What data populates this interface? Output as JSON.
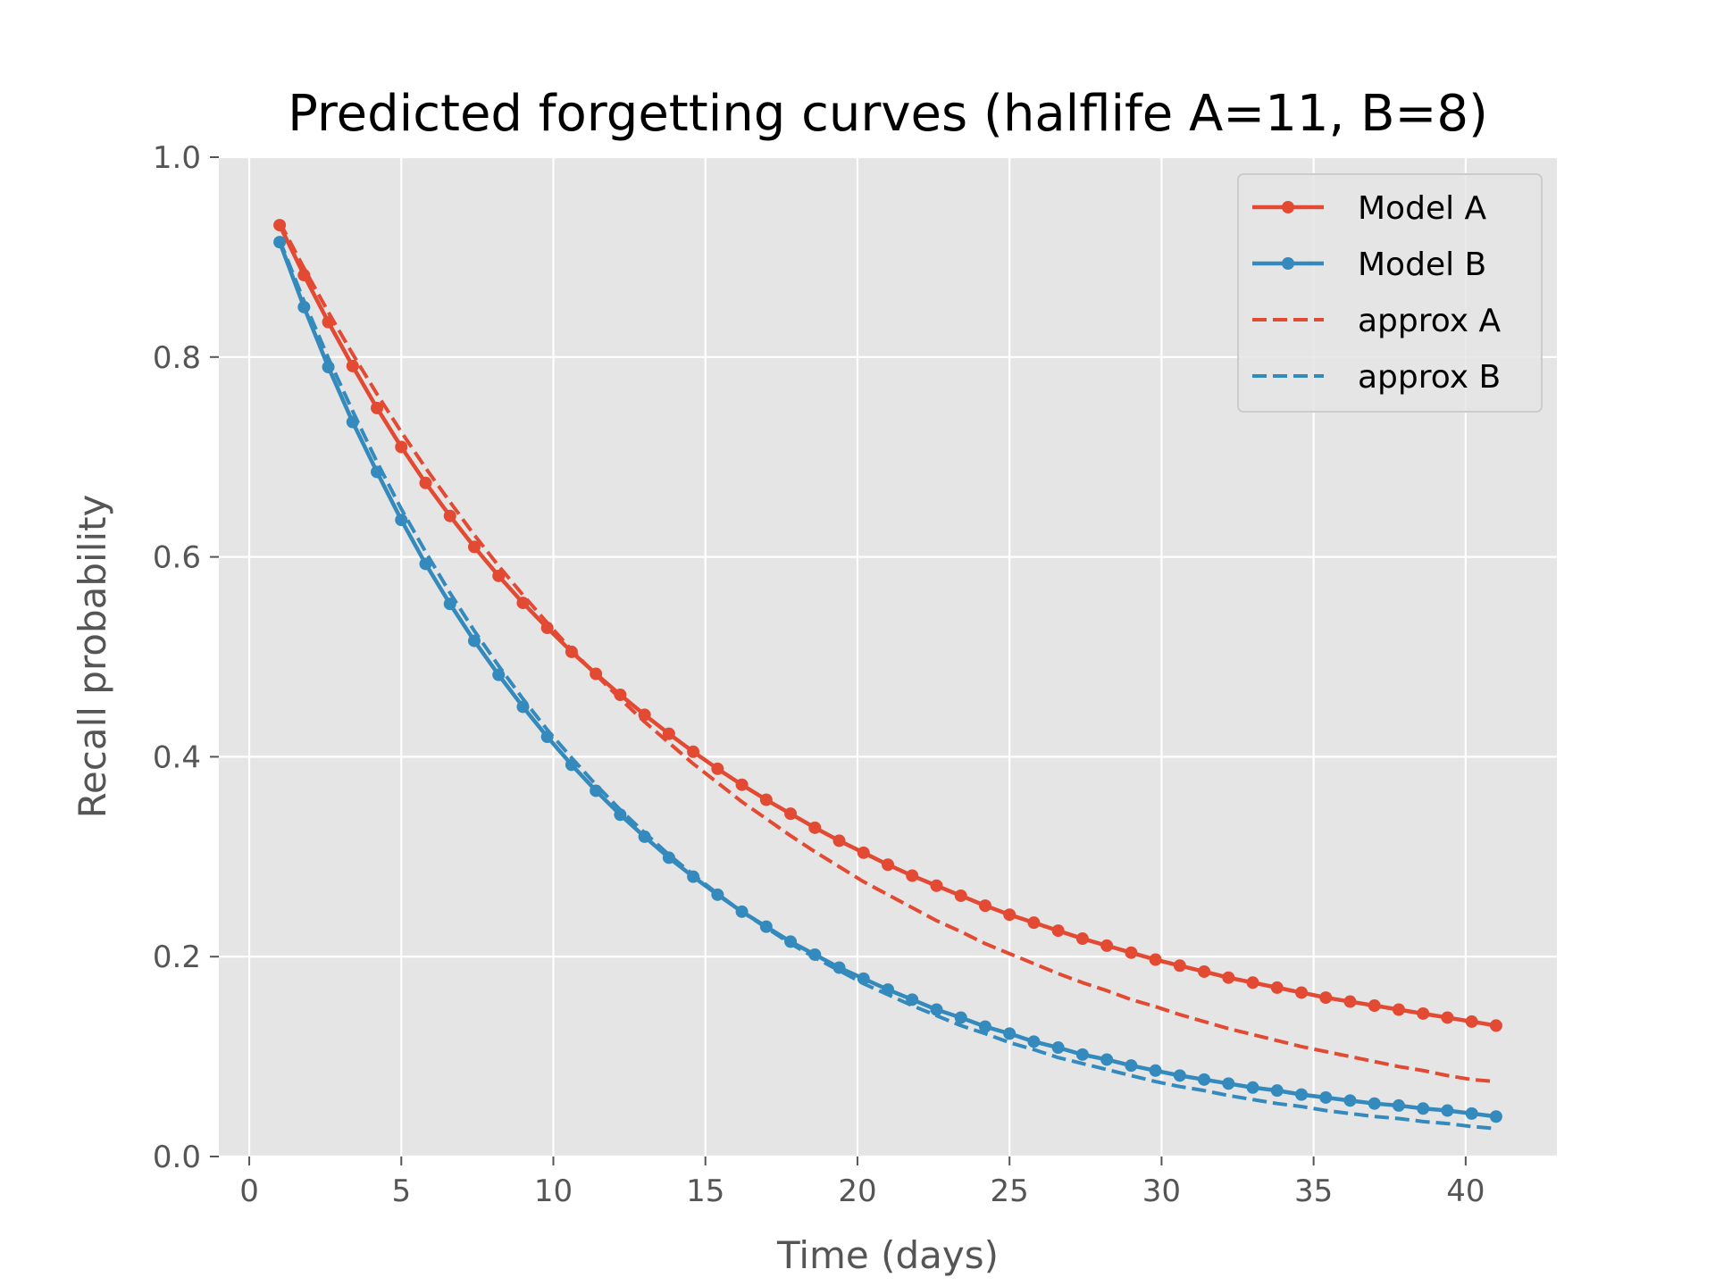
{
  "chart_data": {
    "type": "line",
    "title": "Predicted forgetting curves (halflife A=11, B=8)",
    "xlabel": "Time (days)",
    "ylabel": "Recall probability",
    "xlim": [
      -1.0,
      43.0
    ],
    "ylim": [
      0.0,
      1.0
    ],
    "xticks": [
      0,
      5,
      10,
      15,
      20,
      25,
      30,
      35,
      40
    ],
    "xtick_labels": [
      "0",
      "5",
      "10",
      "15",
      "20",
      "25",
      "30",
      "35",
      "40"
    ],
    "yticks": [
      0.0,
      0.2,
      0.4,
      0.6,
      0.8,
      1.0
    ],
    "ytick_labels": [
      "0.0",
      "0.2",
      "0.4",
      "0.6",
      "0.8",
      "1.0"
    ],
    "grid": true,
    "legend_position": "top-right",
    "x": [
      1.0,
      1.8,
      2.6,
      3.4,
      4.2,
      5.0,
      5.8,
      6.6,
      7.4,
      8.2,
      9.0,
      9.8,
      10.6,
      11.4,
      12.2,
      13.0,
      13.8,
      14.6,
      15.4,
      16.2,
      17.0,
      17.8,
      18.6,
      19.4,
      20.2,
      21.0,
      21.8,
      22.6,
      23.4,
      24.2,
      25.0,
      25.8,
      26.6,
      27.4,
      28.2,
      29.0,
      29.8,
      30.6,
      31.4,
      32.2,
      33.0,
      33.8,
      34.6,
      35.4,
      36.2,
      37.0,
      37.8,
      38.6,
      39.4,
      40.2,
      41.0
    ],
    "series": [
      {
        "name": "Model A",
        "style": "solid-marker",
        "color": "#E24A33",
        "values": [
          0.932,
          0.882,
          0.835,
          0.791,
          0.749,
          0.71,
          0.674,
          0.641,
          0.61,
          0.581,
          0.554,
          0.529,
          0.505,
          0.483,
          0.462,
          0.442,
          0.423,
          0.405,
          0.388,
          0.372,
          0.357,
          0.343,
          0.329,
          0.316,
          0.304,
          0.292,
          0.281,
          0.271,
          0.261,
          0.251,
          0.242,
          0.234,
          0.226,
          0.218,
          0.211,
          0.204,
          0.197,
          0.191,
          0.185,
          0.179,
          0.174,
          0.169,
          0.164,
          0.159,
          0.155,
          0.151,
          0.147,
          0.143,
          0.139,
          0.135,
          0.131
        ]
      },
      {
        "name": "Model B",
        "style": "solid-marker",
        "color": "#348ABD",
        "values": [
          0.915,
          0.85,
          0.79,
          0.735,
          0.685,
          0.637,
          0.593,
          0.553,
          0.516,
          0.482,
          0.45,
          0.42,
          0.392,
          0.366,
          0.342,
          0.32,
          0.299,
          0.28,
          0.262,
          0.245,
          0.23,
          0.215,
          0.202,
          0.189,
          0.178,
          0.167,
          0.157,
          0.147,
          0.139,
          0.13,
          0.123,
          0.115,
          0.109,
          0.102,
          0.097,
          0.091,
          0.086,
          0.081,
          0.077,
          0.073,
          0.069,
          0.066,
          0.062,
          0.059,
          0.056,
          0.053,
          0.051,
          0.048,
          0.046,
          0.043,
          0.04
        ]
      },
      {
        "name": "approx A",
        "style": "dashed",
        "color": "#E24A33",
        "values": [
          0.935,
          0.889,
          0.845,
          0.803,
          0.763,
          0.725,
          0.689,
          0.655,
          0.622,
          0.591,
          0.562,
          0.534,
          0.507,
          0.482,
          0.458,
          0.435,
          0.414,
          0.393,
          0.374,
          0.355,
          0.338,
          0.321,
          0.305,
          0.29,
          0.275,
          0.262,
          0.249,
          0.236,
          0.225,
          0.213,
          0.203,
          0.193,
          0.183,
          0.174,
          0.166,
          0.157,
          0.15,
          0.142,
          0.135,
          0.128,
          0.122,
          0.116,
          0.11,
          0.105,
          0.1,
          0.095,
          0.09,
          0.086,
          0.081,
          0.077,
          0.075
        ]
      },
      {
        "name": "approx B",
        "style": "dashed",
        "color": "#348ABD",
        "values": [
          0.917,
          0.856,
          0.799,
          0.746,
          0.695,
          0.648,
          0.605,
          0.564,
          0.526,
          0.491,
          0.458,
          0.427,
          0.399,
          0.372,
          0.347,
          0.324,
          0.302,
          0.282,
          0.263,
          0.245,
          0.229,
          0.213,
          0.199,
          0.186,
          0.173,
          0.162,
          0.151,
          0.141,
          0.131,
          0.123,
          0.114,
          0.107,
          0.099,
          0.093,
          0.087,
          0.081,
          0.075,
          0.07,
          0.066,
          0.061,
          0.057,
          0.053,
          0.05,
          0.046,
          0.043,
          0.04,
          0.038,
          0.035,
          0.033,
          0.03,
          0.028
        ]
      }
    ]
  },
  "colors": {
    "axes_background": "#E5E5E5",
    "grid": "#FFFFFF",
    "text": "#555555",
    "legend_background": "#E5E5E5",
    "legend_border": "#CCCCCC"
  }
}
